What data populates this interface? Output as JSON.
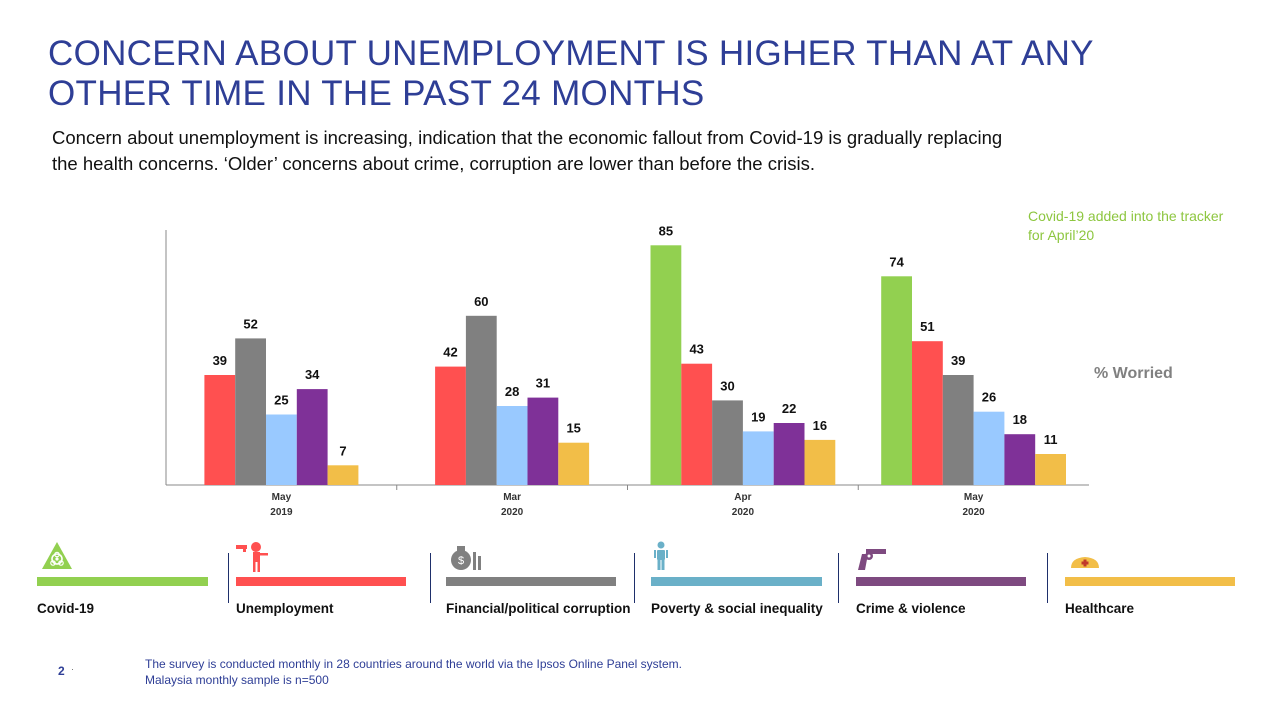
{
  "title": {
    "line1": "CONCERN ABOUT UNEMPLOYMENT IS HIGHER THAN AT ANY",
    "line2": "OTHER TIME IN THE PAST 24 MONTHS"
  },
  "subtitle": {
    "line1": "Concern about unemployment  is increasing, indication that the economic fallout from Covid-19 is gradually  replacing",
    "line2": "the health concerns. ‘Older’ concerns about crime, corruption are lower than before the crisis."
  },
  "note": "Covid-19 added into the tracker for April’20",
  "unit_label": "% Worried",
  "chart_data": {
    "type": "bar",
    "categories": [
      {
        "line1": "May",
        "line2": "2019"
      },
      {
        "line1": "Mar",
        "line2": "2020"
      },
      {
        "line1": "Apr",
        "line2": "2020"
      },
      {
        "line1": "May",
        "line2": "2020"
      }
    ],
    "series": [
      {
        "name": "Covid-19",
        "color": "#92d050",
        "values": [
          null,
          null,
          85,
          74
        ]
      },
      {
        "name": "Unemployment",
        "color": "#ff5050",
        "values": [
          39,
          42,
          43,
          51
        ]
      },
      {
        "name": "Financial/political corruption",
        "color": "#808080",
        "values": [
          52,
          60,
          30,
          39
        ]
      },
      {
        "name": "Poverty & social inequality",
        "color": "#99c9ff",
        "values": [
          25,
          28,
          19,
          26
        ]
      },
      {
        "name": "Crime & violence",
        "color": "#7f3198",
        "values": [
          34,
          31,
          22,
          18
        ]
      },
      {
        "name": "Healthcare",
        "color": "#f2be48",
        "values": [
          7,
          15,
          16,
          11
        ]
      }
    ],
    "ylim": [
      0,
      100
    ],
    "grid": false,
    "data_labels": true,
    "legend_placement": "bottom"
  },
  "legend": [
    {
      "label": "Covid-19",
      "color": "#92d050",
      "icon": "biohazard-icon"
    },
    {
      "label": "Unemployment",
      "color": "#ff5050",
      "icon": "gun-to-head-icon"
    },
    {
      "label": "Financial/political corruption",
      "color": "#808080",
      "icon": "money-bag-icon"
    },
    {
      "label": "Poverty & social inequality",
      "color": "#6ab0c8",
      "icon": "person-icon"
    },
    {
      "label": "Crime & violence",
      "color": "#7e4a80",
      "icon": "revolver-icon"
    },
    {
      "label": "Healthcare",
      "color": "#f2be48",
      "icon": "nurse-cap-icon"
    }
  ],
  "footer": {
    "page_number": "2",
    "line1": "The survey is conducted monthly in 28 countries around the world via the Ipsos Online Panel system.",
    "line2": "Malaysia monthly sample is n=500"
  }
}
